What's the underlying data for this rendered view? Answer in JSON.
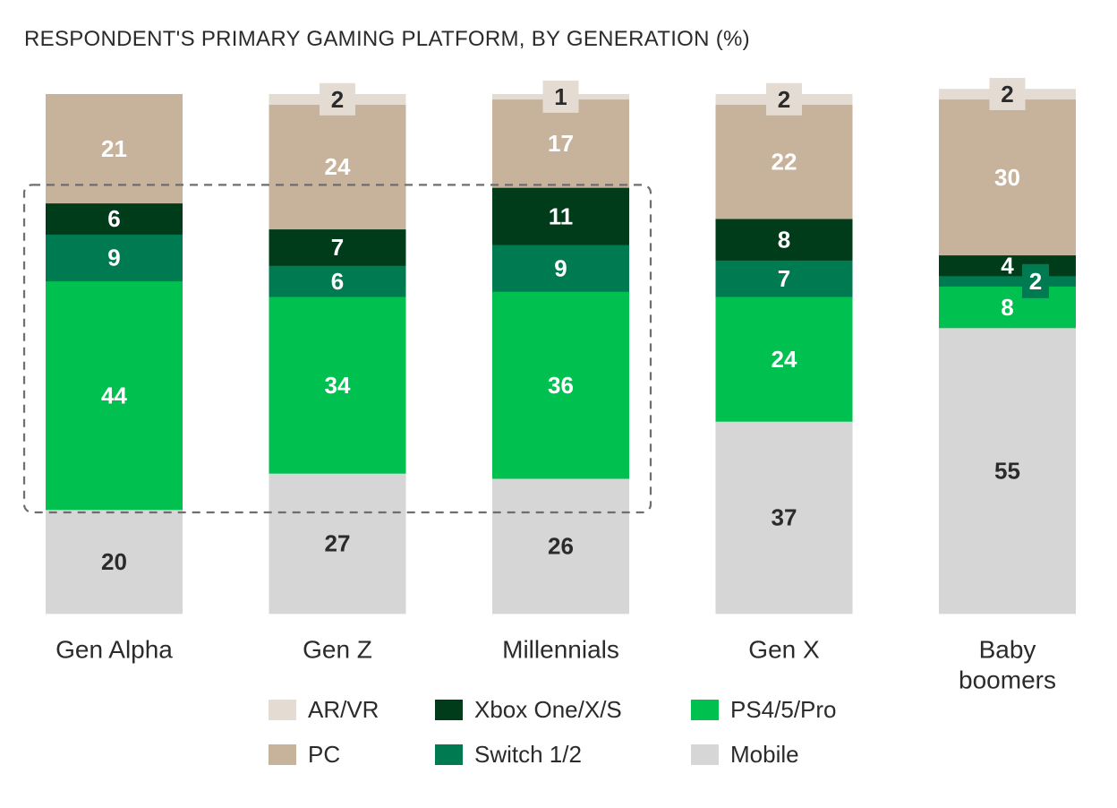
{
  "chart_data": {
    "type": "bar",
    "stacked": true,
    "title": "RESPONDENT'S PRIMARY GAMING PLATFORM, BY GENERATION (%)",
    "xlabel": "",
    "ylabel": "",
    "ylim": [
      0,
      100
    ],
    "categories": [
      "Gen Alpha",
      "Gen Z",
      "Millennials",
      "Gen X",
      "Baby boomers"
    ],
    "category_lines": [
      [
        "Gen Alpha"
      ],
      [
        "Gen Z"
      ],
      [
        "Millennials"
      ],
      [
        "Gen X"
      ],
      [
        "Baby",
        "boomers"
      ]
    ],
    "series": [
      {
        "name": "Mobile",
        "key": "mobile",
        "color": "#d6d6d6",
        "label_color": "#2b2b2b",
        "values": [
          20,
          27,
          26,
          37,
          55
        ]
      },
      {
        "name": "PS4/5/Pro",
        "key": "ps",
        "color": "#00c050",
        "label_color": "#ffffff",
        "values": [
          44,
          34,
          36,
          24,
          8
        ]
      },
      {
        "name": "Switch 1/2",
        "key": "switch",
        "color": "#007a50",
        "label_color": "#ffffff",
        "values": [
          9,
          6,
          9,
          7,
          2
        ]
      },
      {
        "name": "Xbox One/X/S",
        "key": "xbox",
        "color": "#003c19",
        "label_color": "#ffffff",
        "values": [
          6,
          7,
          11,
          8,
          4
        ]
      },
      {
        "name": "PC",
        "key": "pc",
        "color": "#c7b29c",
        "label_color": "#ffffff",
        "values": [
          21,
          24,
          17,
          22,
          30
        ]
      },
      {
        "name": "AR/VR",
        "key": "arvr",
        "color": "#e4dcd2",
        "label_color": "#2b2b2b",
        "values": [
          0,
          2,
          1,
          2,
          2
        ]
      }
    ],
    "legend": [
      {
        "label": "AR/VR",
        "color": "#e4dcd2"
      },
      {
        "label": "PC",
        "color": "#c7b29c"
      },
      {
        "label": "Xbox One/X/S",
        "color": "#003c19"
      },
      {
        "label": "Switch 1/2",
        "color": "#007a50"
      },
      {
        "label": "PS4/5/Pro",
        "color": "#00c050"
      },
      {
        "label": "Mobile",
        "color": "#d6d6d6"
      }
    ],
    "highlight": {
      "categories": [
        "Gen Alpha",
        "Gen Z",
        "Millennials"
      ],
      "series": [
        "Xbox One/X/S",
        "Switch 1/2",
        "PS4/5/Pro"
      ]
    }
  }
}
